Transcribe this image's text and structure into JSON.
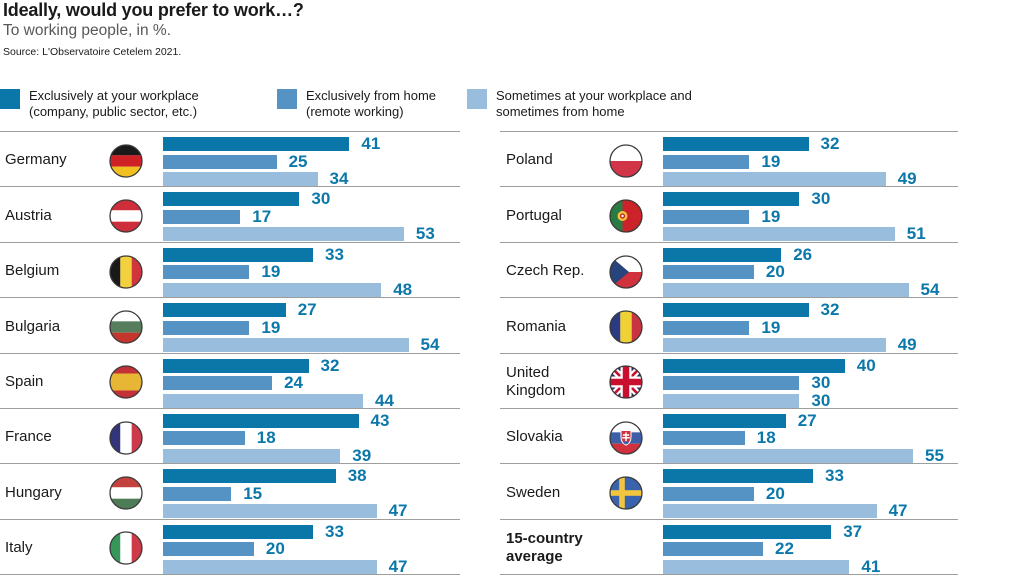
{
  "header": {
    "title": "Ideally, would you prefer to work…?",
    "subtitle": "To working people, in %.",
    "source": "Source: L'Observatoire Cetelem 2021."
  },
  "legend": [
    {
      "lines": [
        "Exclusively at your workplace",
        "(company, public sector, etc.)"
      ],
      "color": "#0b76a8"
    },
    {
      "lines": [
        "Exclusively from home",
        "(remote working)"
      ],
      "color": "#5493c3"
    },
    {
      "lines": [
        "Sometimes at your workplace and",
        "sometimes from home"
      ],
      "color": "#99bedd"
    }
  ],
  "colors": {
    "value_label": "#0c78aa",
    "separator": "#9e9e9e"
  },
  "chart_data": {
    "type": "bar",
    "orientation": "horizontal",
    "unit": "%",
    "value_axis_max": 55,
    "grid": false,
    "legend_position": "top",
    "series": [
      "Exclusively at your workplace (company, public sector, etc.)",
      "Exclusively from home (remote working)",
      "Sometimes at your workplace and sometimes from home"
    ],
    "series_colors": [
      "#0b76a8",
      "#5493c3",
      "#99bedd"
    ],
    "left_column": [
      {
        "country": "Germany",
        "flag": "germany",
        "values": [
          41,
          25,
          34
        ]
      },
      {
        "country": "Austria",
        "flag": "austria",
        "values": [
          30,
          17,
          53
        ]
      },
      {
        "country": "Belgium",
        "flag": "belgium",
        "values": [
          33,
          19,
          48
        ]
      },
      {
        "country": "Bulgaria",
        "flag": "bulgaria",
        "values": [
          27,
          19,
          54
        ]
      },
      {
        "country": "Spain",
        "flag": "spain",
        "values": [
          32,
          24,
          44
        ]
      },
      {
        "country": "France",
        "flag": "france",
        "values": [
          43,
          18,
          39
        ]
      },
      {
        "country": "Hungary",
        "flag": "hungary",
        "values": [
          38,
          15,
          47
        ]
      },
      {
        "country": "Italy",
        "flag": "italy",
        "values": [
          33,
          20,
          47
        ]
      }
    ],
    "right_column": [
      {
        "country": "Poland",
        "flag": "poland",
        "values": [
          32,
          19,
          49
        ]
      },
      {
        "country": "Portugal",
        "flag": "portugal",
        "values": [
          30,
          19,
          51
        ]
      },
      {
        "country": "Czech Rep.",
        "flag": "czech-republic",
        "values": [
          26,
          20,
          54
        ]
      },
      {
        "country": "Romania",
        "flag": "romania",
        "values": [
          32,
          19,
          49
        ]
      },
      {
        "country": "United Kingdom",
        "flag": "united-kingdom",
        "values": [
          40,
          30,
          30
        ]
      },
      {
        "country": "Slovakia",
        "flag": "slovakia",
        "values": [
          27,
          18,
          55
        ]
      },
      {
        "country": "Sweden",
        "flag": "sweden",
        "values": [
          33,
          20,
          47
        ]
      },
      {
        "country": "15-country average",
        "flag": null,
        "values": [
          37,
          22,
          41
        ],
        "bold": true
      }
    ]
  }
}
